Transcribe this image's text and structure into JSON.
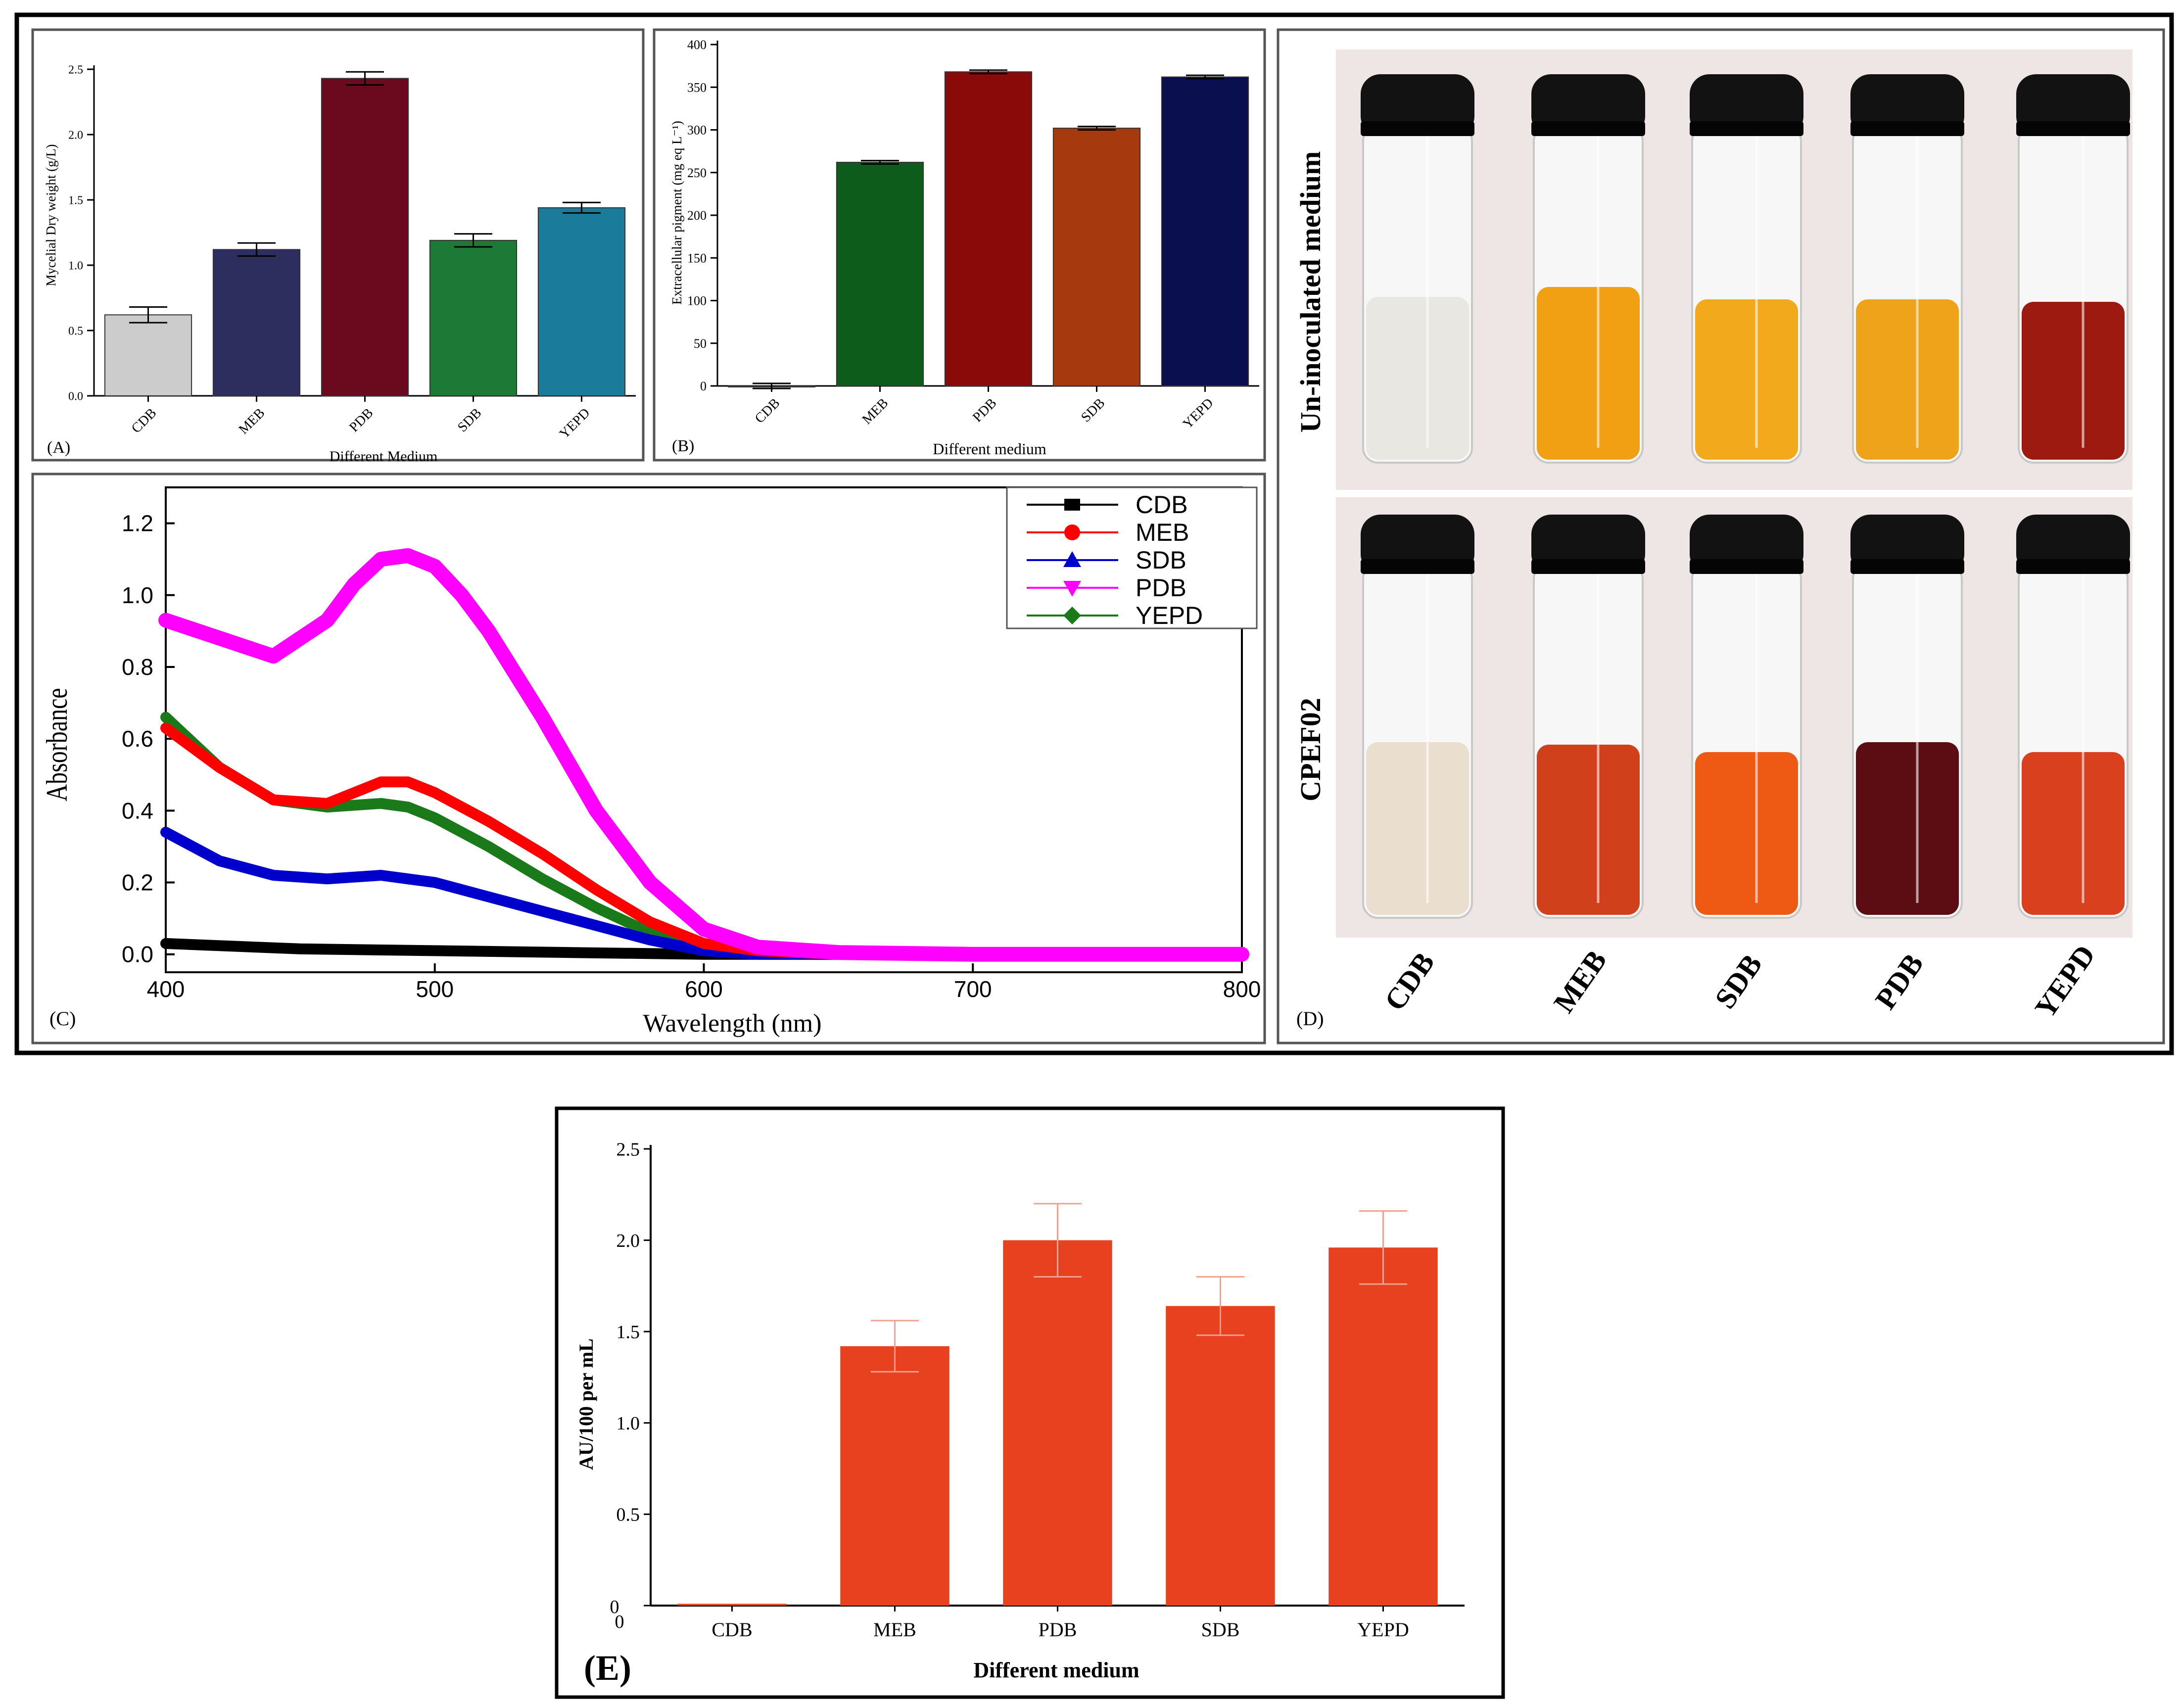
{
  "colors": {
    "frame": "#000000",
    "panel_border": "#555555",
    "a_bars": [
      "#cccccc",
      "#2e2e5e",
      "#6b0a1e",
      "#1d7a36",
      "#1a7c9a"
    ],
    "b_bars": [
      "#cccccc",
      "#0d5c1c",
      "#8a0a0a",
      "#a63a0e",
      "#0a0f4f"
    ],
    "c_series": {
      "CDB": "#000000",
      "MEB": "#ff0000",
      "SDB": "#0000cc",
      "PDB": "#ff00ff",
      "YEPD": "#1a7a1a"
    },
    "e_bar": "#e8411f",
    "e_err": "#f4a090",
    "photo_bg": "#ede6e4",
    "cap": "#121212",
    "glass": "#f7f7f7"
  },
  "chart_data": [
    {
      "id": "A",
      "type": "bar",
      "panel_label": "(A)",
      "title": "",
      "xlabel": "Different Medium",
      "ylabel": "Mycelial Dry weight (g/L)",
      "categories": [
        "CDB",
        "MEB",
        "PDB",
        "SDB",
        "YEPD"
      ],
      "values": [
        0.62,
        1.12,
        2.43,
        1.19,
        1.44
      ],
      "errors": [
        0.06,
        0.05,
        0.05,
        0.05,
        0.04
      ],
      "ylim": [
        0,
        2.5
      ],
      "yticks": [
        "0.0",
        "0.5",
        "1.0",
        "1.5",
        "2.0",
        "2.5"
      ]
    },
    {
      "id": "B",
      "type": "bar",
      "panel_label": "(B)",
      "title": "",
      "xlabel": "Different medium",
      "ylabel": "Extracellular pigment (mg eq L⁻¹)",
      "categories": [
        "CDB",
        "MEB",
        "PDB",
        "SDB",
        "YEPD"
      ],
      "values": [
        0,
        262,
        368,
        302,
        362
      ],
      "errors": [
        3,
        2,
        2,
        2,
        2
      ],
      "ylim": [
        0,
        400
      ],
      "yticks": [
        "0",
        "50",
        "100",
        "150",
        "200",
        "250",
        "300",
        "350",
        "400"
      ]
    },
    {
      "id": "C",
      "type": "line",
      "panel_label": "(C)",
      "title": "",
      "xlabel": "Wavelength (nm)",
      "ylabel": "Absorbance",
      "xlim": [
        400,
        800
      ],
      "ylim": [
        -0.05,
        1.3
      ],
      "xticks": [
        "400",
        "500",
        "600",
        "700",
        "800"
      ],
      "yticks": [
        "0.0",
        "0.2",
        "0.4",
        "0.6",
        "0.8",
        "1.0",
        "1.2"
      ],
      "legend": [
        "CDB",
        "MEB",
        "SDB",
        "PDB",
        "YEPD"
      ],
      "series": [
        {
          "name": "CDB",
          "x": [
            400,
            450,
            500,
            550,
            600,
            650,
            700,
            750,
            800
          ],
          "y": [
            0.03,
            0.015,
            0.01,
            0.005,
            0,
            0,
            0,
            0,
            0
          ]
        },
        {
          "name": "MEB",
          "x": [
            400,
            420,
            440,
            460,
            480,
            490,
            500,
            520,
            540,
            560,
            580,
            600,
            620,
            650,
            700,
            800
          ],
          "y": [
            0.63,
            0.52,
            0.43,
            0.42,
            0.48,
            0.48,
            0.45,
            0.37,
            0.28,
            0.18,
            0.09,
            0.03,
            0.01,
            0,
            0,
            0
          ]
        },
        {
          "name": "SDB",
          "x": [
            400,
            420,
            440,
            460,
            480,
            490,
            500,
            520,
            540,
            560,
            580,
            600,
            620,
            650,
            700,
            800
          ],
          "y": [
            0.34,
            0.26,
            0.22,
            0.21,
            0.22,
            0.21,
            0.2,
            0.16,
            0.12,
            0.08,
            0.04,
            0.01,
            0,
            0,
            0,
            0
          ]
        },
        {
          "name": "PDB",
          "x": [
            400,
            420,
            440,
            460,
            470,
            480,
            490,
            500,
            510,
            520,
            540,
            560,
            580,
            600,
            620,
            650,
            700,
            800
          ],
          "y": [
            0.93,
            0.88,
            0.83,
            0.93,
            1.03,
            1.1,
            1.11,
            1.08,
            1.0,
            0.9,
            0.66,
            0.4,
            0.2,
            0.07,
            0.02,
            0.005,
            0,
            0
          ]
        },
        {
          "name": "YEPD",
          "x": [
            400,
            420,
            440,
            460,
            480,
            490,
            500,
            520,
            540,
            560,
            580,
            600,
            620,
            650,
            700,
            800
          ],
          "y": [
            0.66,
            0.52,
            0.43,
            0.41,
            0.42,
            0.41,
            0.38,
            0.3,
            0.21,
            0.13,
            0.06,
            0.02,
            0.005,
            0,
            0,
            0
          ]
        }
      ]
    },
    {
      "id": "E",
      "type": "bar",
      "panel_label": "(E)",
      "title": "",
      "xlabel": "Different medium",
      "ylabel": "AU/100 per mL",
      "categories": [
        "CDB",
        "MEB",
        "PDB",
        "SDB",
        "YEPD"
      ],
      "values": [
        0.01,
        1.42,
        2.0,
        1.64,
        1.96
      ],
      "errors": [
        0,
        0.14,
        0.2,
        0.16,
        0.2
      ],
      "ylim": [
        0,
        2.5
      ],
      "yticks": [
        "0",
        "0.5",
        "1.0",
        "1.5",
        "2.0",
        "2.5"
      ],
      "zero_labels": [
        "0",
        "0"
      ]
    }
  ],
  "panel_d": {
    "panel_label": "(D)",
    "row_labels": [
      "Un-inoculated  medium",
      "CPEF02"
    ],
    "tube_labels": [
      "CDB",
      "MEB",
      "SDB",
      "PDB",
      "YEPD"
    ],
    "row1_liquid": [
      "#e9e7e2",
      "#f0a012",
      "#f2aa1c",
      "#efa31a",
      "#9c1a10"
    ],
    "row2_liquid": [
      "#eadfcf",
      "#d0401b",
      "#ee5a14",
      "#5c0d14",
      "#d8401e"
    ]
  }
}
